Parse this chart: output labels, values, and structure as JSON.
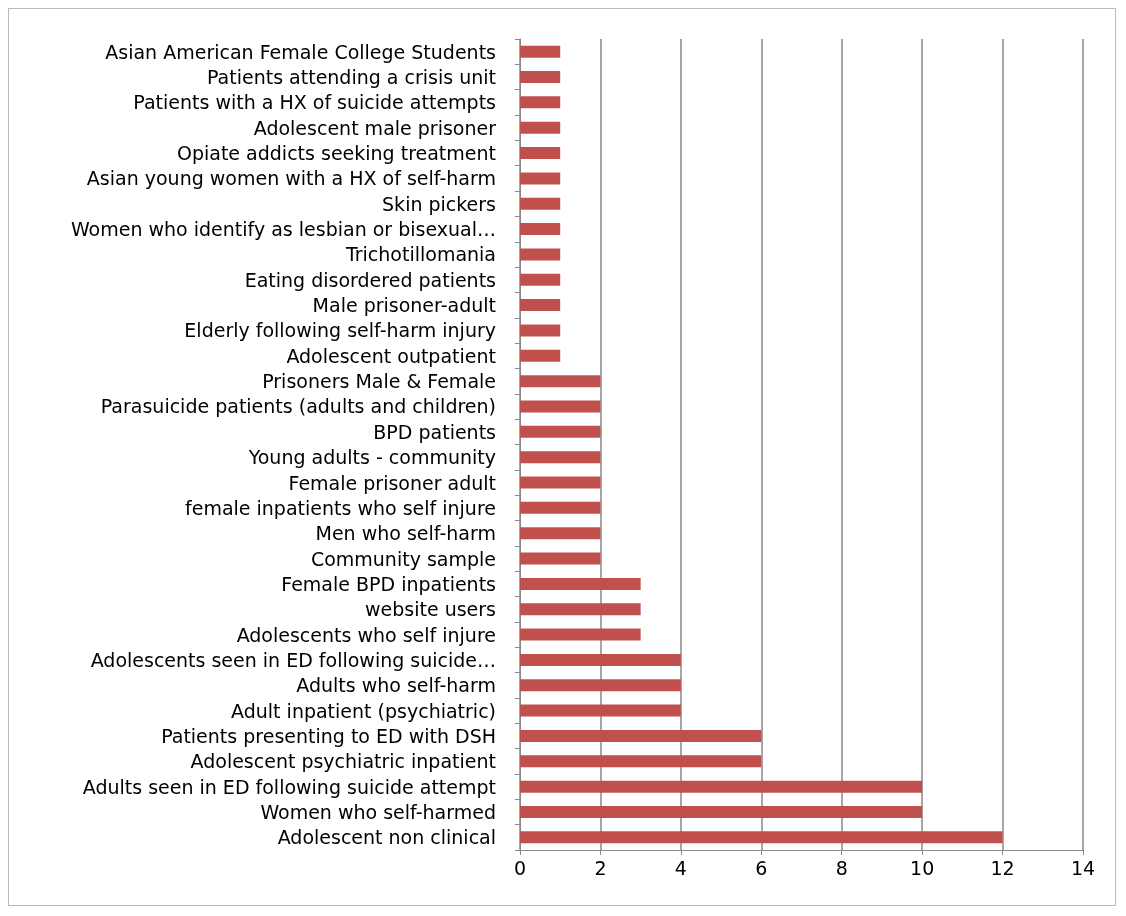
{
  "chart_data": {
    "type": "bar",
    "orientation": "horizontal",
    "categories": [
      "Asian American Female College Students",
      "Patients attending a crisis unit",
      "Patients with a HX of suicide attempts",
      "Adolescent male prisoner",
      "Opiate addicts seeking treatment",
      "Asian young women with a HX of self-harm",
      "Skin pickers",
      "Women who identify as lesbian or bisexual…",
      "Trichotillomania",
      "Eating disordered patients",
      "Male prisoner-adult",
      "Elderly following self-harm injury",
      "Adolescent outpatient",
      "Prisoners Male & Female",
      "Parasuicide patients (adults and children)",
      "BPD patients",
      "Young adults - community",
      "Female prisoner adult",
      "female inpatients who self injure",
      "Men who self-harm",
      "Community sample",
      "Female BPD inpatients",
      "website users",
      "Adolescents who self injure",
      "Adolescents seen in ED following suicide…",
      "Adults who self-harm",
      "Adult inpatient (psychiatric)",
      "Patients presenting to ED with DSH",
      "Adolescent psychiatric inpatient",
      "Adults seen in ED following suicide attempt",
      "Women who self-harmed",
      "Adolescent non clinical"
    ],
    "values": [
      1,
      1,
      1,
      1,
      1,
      1,
      1,
      1,
      1,
      1,
      1,
      1,
      1,
      2,
      2,
      2,
      2,
      2,
      2,
      2,
      2,
      3,
      3,
      3,
      4,
      4,
      4,
      6,
      6,
      10,
      10,
      12
    ],
    "color": "#c0504d",
    "xlim": [
      0,
      14
    ],
    "xticks": [
      0,
      2,
      4,
      6,
      8,
      10,
      12,
      14
    ],
    "grid": "x"
  }
}
